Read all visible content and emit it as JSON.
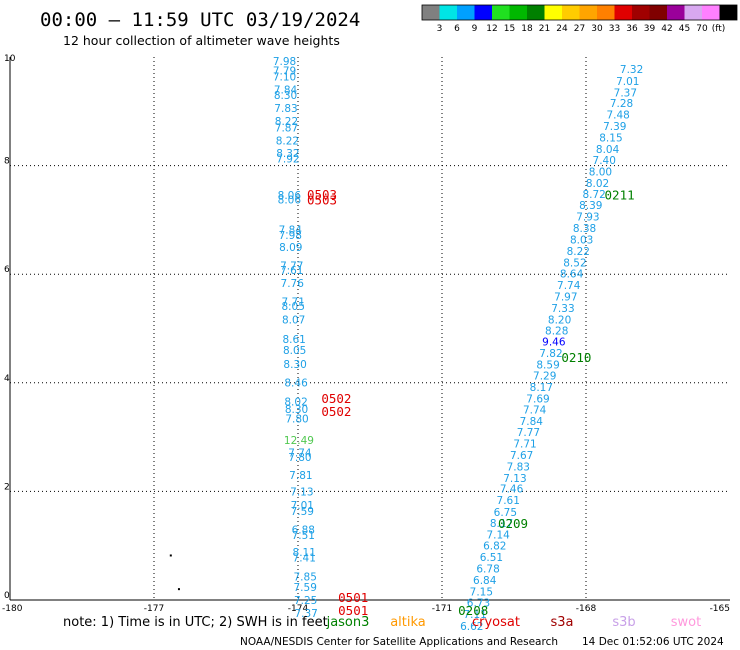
{
  "header": {
    "title": "00:00 — 11:59 UTC 03/19/2024",
    "subtitle": "12 hour collection of altimeter wave heights"
  },
  "legend": {
    "colors": [
      "#808080",
      "#00e5e5",
      "#00a0ff",
      "#0000ff",
      "#20e020",
      "#00b800",
      "#008000",
      "#ffff00",
      "#ffcc00",
      "#ffa500",
      "#ff8000",
      "#e00000",
      "#a00000",
      "#800000",
      "#9a009a",
      "#d8a8f0",
      "#ff80ff",
      "#000000"
    ],
    "labels": [
      "3",
      "6",
      "9",
      "12",
      "15",
      "18",
      "21",
      "24",
      "27",
      "30",
      "33",
      "36",
      "39",
      "42",
      "45",
      "70"
    ],
    "unit": "(ft)"
  },
  "footer": {
    "note": "note:  1) Time is in UTC; 2) SWH is in feet",
    "satellites": [
      {
        "name": "jason3",
        "color": "#008000"
      },
      {
        "name": "altika",
        "color": "#ff9900"
      },
      {
        "name": "cryosat",
        "color": "#e00000"
      },
      {
        "name": "s3a",
        "color": "#a00000"
      },
      {
        "name": "s3b",
        "color": "#c8a0e8"
      },
      {
        "name": "swot",
        "color": "#ff99dd"
      }
    ],
    "credit": "NOAA/NESDIS Center for Satellite Applications and Research",
    "timestamp": "14 Dec 01:52:06 UTC 2024"
  },
  "chart_data": {
    "type": "scatter",
    "xlim": [
      -180,
      -165
    ],
    "ylim": [
      0,
      10
    ],
    "xticks": [
      "-180",
      "-177",
      "-174",
      "-171",
      "-168",
      "-165"
    ],
    "yticks": [
      "0",
      "2",
      "4",
      "6",
      "8",
      "10"
    ],
    "grid": true,
    "unit": "ft",
    "series": [
      {
        "color": "#1ea0e6",
        "points": [
          {
            "x": -174.28,
            "y": 9.93,
            "v": "7.98"
          },
          {
            "x": -174.28,
            "y": 9.75,
            "v": "7.79"
          },
          {
            "x": -174.28,
            "y": 9.64,
            "v": "7.10"
          },
          {
            "x": -174.26,
            "y": 9.4,
            "v": "7.84"
          },
          {
            "x": -174.26,
            "y": 9.3,
            "v": "8.30"
          },
          {
            "x": -174.25,
            "y": 9.06,
            "v": "7.83"
          },
          {
            "x": -174.24,
            "y": 8.82,
            "v": "8.22"
          },
          {
            "x": -174.24,
            "y": 8.7,
            "v": "7.87"
          },
          {
            "x": -174.22,
            "y": 8.46,
            "v": "8.22"
          },
          {
            "x": -174.21,
            "y": 8.23,
            "v": "8.32"
          },
          {
            "x": -174.21,
            "y": 8.13,
            "v": "7.92"
          },
          {
            "x": -174.18,
            "y": 7.46,
            "v": "8.06"
          },
          {
            "x": -174.18,
            "y": 7.38,
            "v": "8.06"
          },
          {
            "x": -174.16,
            "y": 6.82,
            "v": "7.84"
          },
          {
            "x": -174.16,
            "y": 6.72,
            "v": "7.98"
          },
          {
            "x": -174.15,
            "y": 6.5,
            "v": "8.09"
          },
          {
            "x": -174.13,
            "y": 6.16,
            "v": "7.77"
          },
          {
            "x": -174.13,
            "y": 6.08,
            "v": "7.61"
          },
          {
            "x": -174.12,
            "y": 5.84,
            "v": "7.76"
          },
          {
            "x": -174.1,
            "y": 5.5,
            "v": "7.71"
          },
          {
            "x": -174.1,
            "y": 5.41,
            "v": "8.05"
          },
          {
            "x": -174.09,
            "y": 5.17,
            "v": "8.07"
          },
          {
            "x": -174.08,
            "y": 4.81,
            "v": "8.61"
          },
          {
            "x": -174.07,
            "y": 4.6,
            "v": "8.05"
          },
          {
            "x": -174.06,
            "y": 4.35,
            "v": "8.30"
          },
          {
            "x": -174.04,
            "y": 4.01,
            "v": "8.46"
          },
          {
            "x": -174.04,
            "y": 3.66,
            "v": "8.02"
          },
          {
            "x": -174.03,
            "y": 3.52,
            "v": "8.30"
          },
          {
            "x": -174.02,
            "y": 3.34,
            "v": "7.80"
          },
          {
            "x": -173.96,
            "y": 2.72,
            "v": "7.74"
          },
          {
            "x": -173.96,
            "y": 2.63,
            "v": "7.80"
          },
          {
            "x": -173.94,
            "y": 2.3,
            "v": "7.81"
          },
          {
            "x": -173.92,
            "y": 2.0,
            "v": "7.13"
          },
          {
            "x": -173.91,
            "y": 1.75,
            "v": "7.01"
          },
          {
            "x": -173.91,
            "y": 1.64,
            "v": "7.59"
          },
          {
            "x": -173.89,
            "y": 1.3,
            "v": "6.88"
          },
          {
            "x": -173.89,
            "y": 1.2,
            "v": "7.51"
          },
          {
            "x": -173.87,
            "y": 0.88,
            "v": "8.11"
          },
          {
            "x": -173.87,
            "y": 0.78,
            "v": "7.41"
          },
          {
            "x": -173.85,
            "y": 0.43,
            "v": "7.85"
          },
          {
            "x": -173.85,
            "y": 0.24,
            "v": "7.59"
          },
          {
            "x": -173.84,
            "y": 0.0,
            "v": "7.25"
          },
          {
            "x": -173.83,
            "y": -0.24,
            "v": "7.37"
          }
        ]
      },
      {
        "color": "#50c850",
        "points": [
          {
            "x": -173.98,
            "y": 2.95,
            "v": "12.49"
          }
        ]
      },
      {
        "color": "#1ea0e6",
        "points": [
          {
            "x": -167.05,
            "y": 9.78,
            "v": "7.32"
          },
          {
            "x": -167.13,
            "y": 9.56,
            "v": "7.01"
          },
          {
            "x": -167.18,
            "y": 9.35,
            "v": "7.37"
          },
          {
            "x": -167.26,
            "y": 9.15,
            "v": "7.28"
          },
          {
            "x": -167.33,
            "y": 8.94,
            "v": "7.48"
          },
          {
            "x": -167.4,
            "y": 8.73,
            "v": "7.39"
          },
          {
            "x": -167.48,
            "y": 8.52,
            "v": "8.15"
          },
          {
            "x": -167.55,
            "y": 8.31,
            "v": "8.04"
          },
          {
            "x": -167.62,
            "y": 8.1,
            "v": "7.40"
          },
          {
            "x": -167.7,
            "y": 7.89,
            "v": "8.00"
          },
          {
            "x": -167.76,
            "y": 7.68,
            "v": "8.02"
          },
          {
            "x": -167.83,
            "y": 7.48,
            "v": "8.72"
          },
          {
            "x": -167.9,
            "y": 7.27,
            "v": "8.39"
          },
          {
            "x": -167.96,
            "y": 7.06,
            "v": "7.93"
          },
          {
            "x": -168.03,
            "y": 6.85,
            "v": "8.38"
          },
          {
            "x": -168.09,
            "y": 6.64,
            "v": "8.03"
          },
          {
            "x": -168.16,
            "y": 6.43,
            "v": "8.22"
          },
          {
            "x": -168.23,
            "y": 6.22,
            "v": "8.52"
          },
          {
            "x": -168.3,
            "y": 6.01,
            "v": "8.64"
          },
          {
            "x": -168.36,
            "y": 5.8,
            "v": "7.74"
          },
          {
            "x": -168.42,
            "y": 5.59,
            "v": "7.97"
          },
          {
            "x": -168.48,
            "y": 5.38,
            "v": "7.33"
          },
          {
            "x": -168.55,
            "y": 5.17,
            "v": "8.20"
          },
          {
            "x": -168.61,
            "y": 4.96,
            "v": "8.28"
          },
          {
            "x": -168.73,
            "y": 4.55,
            "v": "7.82"
          },
          {
            "x": -168.79,
            "y": 4.34,
            "v": "8.59"
          },
          {
            "x": -168.86,
            "y": 4.13,
            "v": "7.29"
          },
          {
            "x": -168.93,
            "y": 3.92,
            "v": "8.17"
          },
          {
            "x": -169.0,
            "y": 3.71,
            "v": "7.69"
          },
          {
            "x": -169.07,
            "y": 3.51,
            "v": "7.74"
          },
          {
            "x": -169.14,
            "y": 3.3,
            "v": "7.84"
          },
          {
            "x": -169.2,
            "y": 3.09,
            "v": "7.77"
          },
          {
            "x": -169.27,
            "y": 2.88,
            "v": "7.71"
          },
          {
            "x": -169.34,
            "y": 2.67,
            "v": "7.67"
          },
          {
            "x": -169.41,
            "y": 2.46,
            "v": "7.83"
          },
          {
            "x": -169.48,
            "y": 2.25,
            "v": "7.13"
          },
          {
            "x": -169.55,
            "y": 2.05,
            "v": "7.46"
          },
          {
            "x": -169.62,
            "y": 1.84,
            "v": "7.61"
          },
          {
            "x": -169.68,
            "y": 1.62,
            "v": "6.75"
          },
          {
            "x": -169.76,
            "y": 1.42,
            "v": "8.17"
          },
          {
            "x": -169.83,
            "y": 1.21,
            "v": "7.14"
          },
          {
            "x": -169.9,
            "y": 1.0,
            "v": "6.82"
          },
          {
            "x": -169.97,
            "y": 0.79,
            "v": "6.51"
          },
          {
            "x": -170.04,
            "y": 0.58,
            "v": "6.78"
          },
          {
            "x": -170.11,
            "y": 0.37,
            "v": "6.84"
          },
          {
            "x": -170.18,
            "y": 0.16,
            "v": "7.15"
          },
          {
            "x": -170.24,
            "y": -0.05,
            "v": "6.73"
          },
          {
            "x": -170.31,
            "y": -0.26,
            "v": "7.11"
          },
          {
            "x": -170.38,
            "y": -0.48,
            "v": "6.62"
          }
        ]
      },
      {
        "color": "#0000ff",
        "points": [
          {
            "x": -168.67,
            "y": 4.76,
            "v": "9.46"
          }
        ]
      }
    ],
    "time_labels": [
      {
        "x": -173.5,
        "y": 7.46,
        "text": "0503",
        "color": "#e00000"
      },
      {
        "x": -173.5,
        "y": 7.36,
        "text": "0503",
        "color": "#e00000"
      },
      {
        "x": -173.2,
        "y": 3.7,
        "text": "0502",
        "color": "#e00000"
      },
      {
        "x": -173.2,
        "y": 3.46,
        "text": "0502",
        "color": "#e00000"
      },
      {
        "x": -172.85,
        "y": 0.04,
        "text": "0501",
        "color": "#e00000"
      },
      {
        "x": -172.85,
        "y": -0.2,
        "text": "0501",
        "color": "#e00000"
      },
      {
        "x": -167.3,
        "y": 7.45,
        "text": "0211",
        "color": "#008000"
      },
      {
        "x": -168.2,
        "y": 4.46,
        "text": "0210",
        "color": "#008000"
      },
      {
        "x": -169.52,
        "y": 1.4,
        "text": "0209",
        "color": "#008000"
      },
      {
        "x": -170.35,
        "y": -0.2,
        "text": "0208",
        "color": "#008000"
      }
    ],
    "markers": [
      {
        "x": -176.65,
        "y": 0.82
      },
      {
        "x": -176.48,
        "y": 0.2
      }
    ]
  }
}
